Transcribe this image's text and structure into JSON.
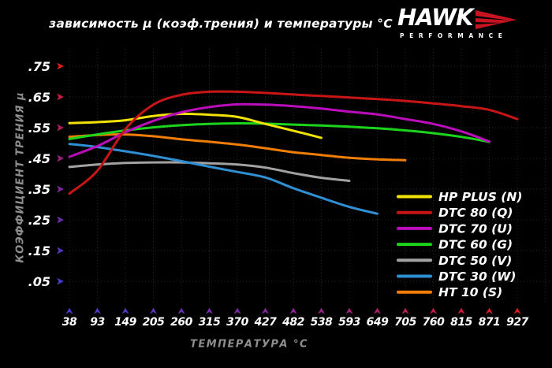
{
  "header": {
    "title": "зависимость μ (коэф.трения) и температуры °C"
  },
  "logo": {
    "brand": "HAWK",
    "sub": "PERFORMANCE",
    "swoosh_color": "#c81420"
  },
  "axes": {
    "x_label": "ТЕМПЕРАТУРА °C",
    "y_label": "КОЭФФИЦИЕНТ ТРЕНИЯ μ"
  },
  "chart_data": {
    "type": "line",
    "title": "зависимость μ (коэф.трения) и температуры °C",
    "xlabel": "ТЕМПЕРАТУРА °C",
    "ylabel": "КОЭФФИЦИЕНТ ТРЕНИЯ μ",
    "x_ticks": [
      38,
      93,
      149,
      205,
      260,
      315,
      370,
      427,
      482,
      538,
      593,
      649,
      705,
      760,
      815,
      871,
      927
    ],
    "y_tick_labels": [
      ".75",
      ".65",
      ".55",
      ".45",
      ".35",
      ".25",
      ".15",
      ".05"
    ],
    "y_tick_values": [
      0.75,
      0.65,
      0.55,
      0.45,
      0.35,
      0.25,
      0.15,
      0.05
    ],
    "ylim": [
      0.05,
      0.8
    ],
    "grid": "dotted",
    "grid_color": "#2a2a2a",
    "legend_position": "inside-right-bottom",
    "axis_gradient": {
      "top_red": "#e11414",
      "mid_purple": "#8a2390",
      "corner_blue": "#3a3ac6",
      "right_red": "#a01624"
    },
    "series": [
      {
        "name": "HP PLUS (N)",
        "color": "#f2e205",
        "points": [
          [
            38,
            0.565
          ],
          [
            93,
            0.568
          ],
          [
            149,
            0.574
          ],
          [
            205,
            0.588
          ],
          [
            260,
            0.595
          ],
          [
            315,
            0.592
          ],
          [
            370,
            0.585
          ],
          [
            427,
            0.562
          ],
          [
            482,
            0.54
          ],
          [
            538,
            0.517
          ]
        ]
      },
      {
        "name": "DTC 80 (Q)",
        "color": "#c81616",
        "points": [
          [
            38,
            0.335
          ],
          [
            93,
            0.41
          ],
          [
            149,
            0.545
          ],
          [
            205,
            0.625
          ],
          [
            260,
            0.657
          ],
          [
            315,
            0.667
          ],
          [
            370,
            0.667
          ],
          [
            427,
            0.663
          ],
          [
            482,
            0.658
          ],
          [
            538,
            0.653
          ],
          [
            593,
            0.648
          ],
          [
            649,
            0.643
          ],
          [
            705,
            0.637
          ],
          [
            760,
            0.629
          ],
          [
            815,
            0.62
          ],
          [
            871,
            0.608
          ],
          [
            927,
            0.578
          ]
        ]
      },
      {
        "name": "DTC 70 (U)",
        "color": "#bb0dbb",
        "points": [
          [
            38,
            0.455
          ],
          [
            93,
            0.49
          ],
          [
            149,
            0.535
          ],
          [
            205,
            0.572
          ],
          [
            260,
            0.6
          ],
          [
            315,
            0.617
          ],
          [
            370,
            0.626
          ],
          [
            427,
            0.625
          ],
          [
            482,
            0.62
          ],
          [
            538,
            0.612
          ],
          [
            593,
            0.602
          ],
          [
            649,
            0.593
          ],
          [
            705,
            0.578
          ],
          [
            760,
            0.562
          ],
          [
            815,
            0.538
          ],
          [
            871,
            0.505
          ]
        ]
      },
      {
        "name": "DTC 60 (G)",
        "color": "#1cd41c",
        "points": [
          [
            38,
            0.513
          ],
          [
            93,
            0.528
          ],
          [
            149,
            0.541
          ],
          [
            205,
            0.551
          ],
          [
            260,
            0.558
          ],
          [
            315,
            0.562
          ],
          [
            370,
            0.564
          ],
          [
            427,
            0.563
          ],
          [
            482,
            0.56
          ],
          [
            538,
            0.557
          ],
          [
            593,
            0.553
          ],
          [
            649,
            0.548
          ],
          [
            705,
            0.541
          ],
          [
            760,
            0.532
          ],
          [
            815,
            0.52
          ],
          [
            871,
            0.504
          ]
        ]
      },
      {
        "name": "DTC 50 (V)",
        "color": "#a2a2a2",
        "points": [
          [
            38,
            0.422
          ],
          [
            93,
            0.43
          ],
          [
            149,
            0.435
          ],
          [
            205,
            0.437
          ],
          [
            260,
            0.437
          ],
          [
            315,
            0.434
          ],
          [
            370,
            0.43
          ],
          [
            427,
            0.42
          ],
          [
            482,
            0.402
          ],
          [
            538,
            0.387
          ],
          [
            593,
            0.377
          ]
        ]
      },
      {
        "name": "DTC 30 (W)",
        "color": "#2f8fd2",
        "points": [
          [
            38,
            0.497
          ],
          [
            93,
            0.487
          ],
          [
            149,
            0.473
          ],
          [
            205,
            0.458
          ],
          [
            260,
            0.441
          ],
          [
            315,
            0.423
          ],
          [
            370,
            0.406
          ],
          [
            427,
            0.388
          ],
          [
            482,
            0.353
          ],
          [
            538,
            0.322
          ],
          [
            593,
            0.292
          ],
          [
            649,
            0.27
          ]
        ]
      },
      {
        "name": "HT 10 (S)",
        "color": "#f07d05",
        "points": [
          [
            38,
            0.52
          ],
          [
            93,
            0.526
          ],
          [
            149,
            0.528
          ],
          [
            205,
            0.522
          ],
          [
            260,
            0.512
          ],
          [
            315,
            0.504
          ],
          [
            370,
            0.495
          ],
          [
            427,
            0.483
          ],
          [
            482,
            0.47
          ],
          [
            538,
            0.461
          ],
          [
            593,
            0.452
          ],
          [
            649,
            0.447
          ],
          [
            705,
            0.444
          ]
        ]
      }
    ]
  }
}
